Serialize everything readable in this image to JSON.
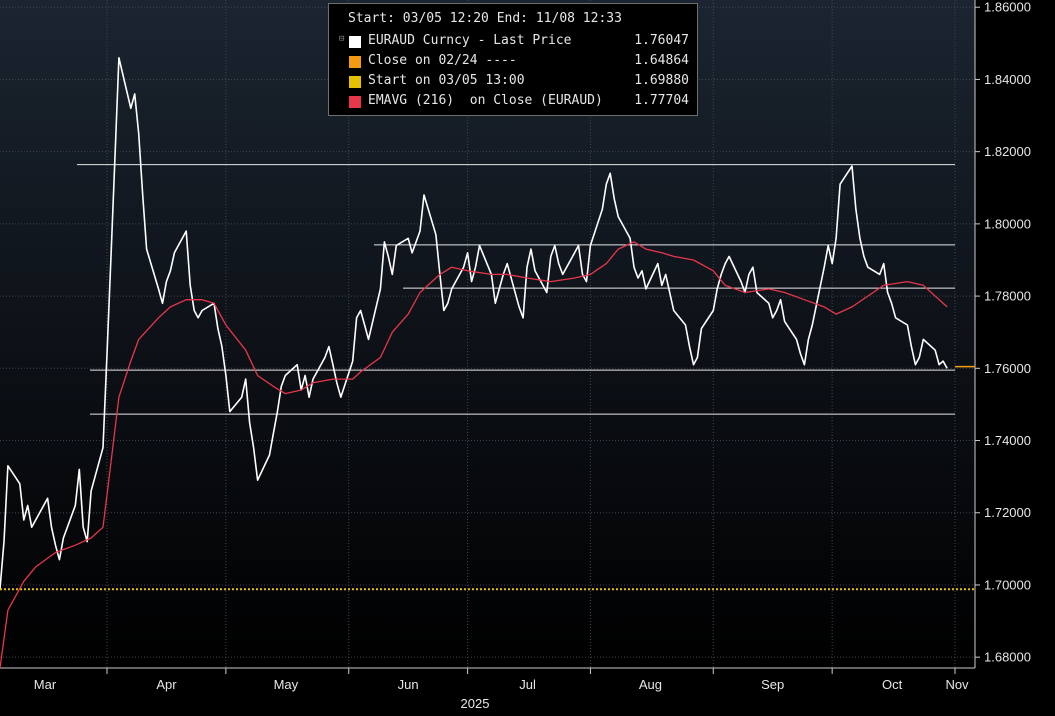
{
  "legend": {
    "header": "Start: 03/05 12:20 End: 11/08 12:33",
    "entries": [
      {
        "label": "EURAUD Curncy - Last Price",
        "value": "1.76047",
        "color": "#ffffff"
      },
      {
        "label": "Close on 02/24 ----",
        "value": "1.64864",
        "color": "#f39c12"
      },
      {
        "label": "Start on 03/05 13:00",
        "value": "1.69880",
        "color": "#e5c100"
      },
      {
        "label": "EMAVG (216)  on Close (EURAUD)",
        "value": "1.77704",
        "color": "#e8364b"
      }
    ]
  },
  "chart_data": {
    "type": "line",
    "x_ticks": [
      "Mar",
      "Apr",
      "May",
      "Jun",
      "Jul",
      "Aug",
      "Sep",
      "Oct",
      "Nov"
    ],
    "year_label": "2025",
    "y_ticks": [
      "1.68000",
      "1.70000",
      "1.72000",
      "1.74000",
      "1.76000",
      "1.78000",
      "1.80000",
      "1.82000",
      "1.84000",
      "1.86000"
    ],
    "ylim": [
      1.677,
      1.862
    ],
    "grid": true,
    "legend_position": "top-center",
    "series": [
      {
        "name": "EURAUD Curncy - Last Price",
        "color": "#ffffff",
        "points": [
          [
            "03/05",
            1.699
          ],
          [
            "03/06",
            1.712
          ],
          [
            "03/07",
            1.733
          ],
          [
            "03/10",
            1.728
          ],
          [
            "03/11",
            1.718
          ],
          [
            "03/12",
            1.722
          ],
          [
            "03/13",
            1.716
          ],
          [
            "03/14",
            1.718
          ],
          [
            "03/17",
            1.724
          ],
          [
            "03/18",
            1.716
          ],
          [
            "03/19",
            1.711
          ],
          [
            "03/20",
            1.707
          ],
          [
            "03/21",
            1.713
          ],
          [
            "03/24",
            1.722
          ],
          [
            "03/25",
            1.732
          ],
          [
            "03/26",
            1.716
          ],
          [
            "03/27",
            1.712
          ],
          [
            "03/28",
            1.726
          ],
          [
            "03/31",
            1.738
          ],
          [
            "04/01",
            1.764
          ],
          [
            "04/02",
            1.791
          ],
          [
            "04/03",
            1.818
          ],
          [
            "04/04",
            1.846
          ],
          [
            "04/07",
            1.832
          ],
          [
            "04/08",
            1.836
          ],
          [
            "04/09",
            1.825
          ],
          [
            "04/10",
            1.808
          ],
          [
            "04/11",
            1.793
          ],
          [
            "04/14",
            1.782
          ],
          [
            "04/15",
            1.778
          ],
          [
            "04/16",
            1.784
          ],
          [
            "04/17",
            1.787
          ],
          [
            "04/18",
            1.792
          ],
          [
            "04/21",
            1.798
          ],
          [
            "04/22",
            1.783
          ],
          [
            "04/23",
            1.776
          ],
          [
            "04/24",
            1.774
          ],
          [
            "04/25",
            1.776
          ],
          [
            "04/28",
            1.778
          ],
          [
            "04/29",
            1.771
          ],
          [
            "04/30",
            1.766
          ],
          [
            "05/01",
            1.758
          ],
          [
            "05/02",
            1.748
          ],
          [
            "05/05",
            1.752
          ],
          [
            "05/06",
            1.757
          ],
          [
            "05/07",
            1.745
          ],
          [
            "05/08",
            1.738
          ],
          [
            "05/09",
            1.729
          ],
          [
            "05/12",
            1.736
          ],
          [
            "05/13",
            1.742
          ],
          [
            "05/14",
            1.748
          ],
          [
            "05/15",
            1.755
          ],
          [
            "05/16",
            1.758
          ],
          [
            "05/19",
            1.761
          ],
          [
            "05/20",
            1.754
          ],
          [
            "05/21",
            1.758
          ],
          [
            "05/22",
            1.752
          ],
          [
            "05/23",
            1.757
          ],
          [
            "05/26",
            1.763
          ],
          [
            "05/27",
            1.766
          ],
          [
            "05/28",
            1.761
          ],
          [
            "05/29",
            1.756
          ],
          [
            "05/30",
            1.752
          ],
          [
            "06/02",
            1.762
          ],
          [
            "06/03",
            1.774
          ],
          [
            "06/04",
            1.776
          ],
          [
            "06/05",
            1.772
          ],
          [
            "06/06",
            1.768
          ],
          [
            "06/09",
            1.782
          ],
          [
            "06/10",
            1.795
          ],
          [
            "06/11",
            1.791
          ],
          [
            "06/12",
            1.786
          ],
          [
            "06/13",
            1.794
          ],
          [
            "06/16",
            1.796
          ],
          [
            "06/17",
            1.792
          ],
          [
            "06/18",
            1.795
          ],
          [
            "06/19",
            1.798
          ],
          [
            "06/20",
            1.808
          ],
          [
            "06/23",
            1.797
          ],
          [
            "06/24",
            1.786
          ],
          [
            "06/25",
            1.776
          ],
          [
            "06/26",
            1.778
          ],
          [
            "06/27",
            1.782
          ],
          [
            "06/30",
            1.788
          ],
          [
            "07/01",
            1.792
          ],
          [
            "07/02",
            1.784
          ],
          [
            "07/03",
            1.788
          ],
          [
            "07/04",
            1.794
          ],
          [
            "07/07",
            1.786
          ],
          [
            "07/08",
            1.778
          ],
          [
            "07/09",
            1.782
          ],
          [
            "07/10",
            1.786
          ],
          [
            "07/11",
            1.789
          ],
          [
            "07/14",
            1.777
          ],
          [
            "07/15",
            1.774
          ],
          [
            "07/16",
            1.788
          ],
          [
            "07/17",
            1.793
          ],
          [
            "07/18",
            1.787
          ],
          [
            "07/21",
            1.781
          ],
          [
            "07/22",
            1.791
          ],
          [
            "07/23",
            1.794
          ],
          [
            "07/24",
            1.789
          ],
          [
            "07/25",
            1.786
          ],
          [
            "07/28",
            1.792
          ],
          [
            "07/29",
            1.794
          ],
          [
            "07/30",
            1.786
          ],
          [
            "07/31",
            1.784
          ],
          [
            "08/01",
            1.794
          ],
          [
            "08/04",
            1.804
          ],
          [
            "08/05",
            1.811
          ],
          [
            "08/06",
            1.814
          ],
          [
            "08/07",
            1.807
          ],
          [
            "08/08",
            1.802
          ],
          [
            "08/11",
            1.796
          ],
          [
            "08/12",
            1.788
          ],
          [
            "08/13",
            1.785
          ],
          [
            "08/14",
            1.787
          ],
          [
            "08/15",
            1.782
          ],
          [
            "08/18",
            1.789
          ],
          [
            "08/19",
            1.783
          ],
          [
            "08/20",
            1.786
          ],
          [
            "08/21",
            1.781
          ],
          [
            "08/22",
            1.776
          ],
          [
            "08/25",
            1.772
          ],
          [
            "08/26",
            1.766
          ],
          [
            "08/27",
            1.761
          ],
          [
            "08/28",
            1.763
          ],
          [
            "08/29",
            1.771
          ],
          [
            "09/01",
            1.776
          ],
          [
            "09/02",
            1.782
          ],
          [
            "09/03",
            1.786
          ],
          [
            "09/04",
            1.789
          ],
          [
            "09/05",
            1.791
          ],
          [
            "09/08",
            1.784
          ],
          [
            "09/09",
            1.781
          ],
          [
            "09/10",
            1.786
          ],
          [
            "09/11",
            1.788
          ],
          [
            "09/12",
            1.781
          ],
          [
            "09/15",
            1.778
          ],
          [
            "09/16",
            1.774
          ],
          [
            "09/17",
            1.776
          ],
          [
            "09/18",
            1.779
          ],
          [
            "09/19",
            1.773
          ],
          [
            "09/22",
            1.768
          ],
          [
            "09/23",
            1.764
          ],
          [
            "09/24",
            1.761
          ],
          [
            "09/25",
            1.768
          ],
          [
            "09/26",
            1.772
          ],
          [
            "09/29",
            1.788
          ],
          [
            "09/30",
            1.794
          ],
          [
            "10/01",
            1.789
          ],
          [
            "10/02",
            1.796
          ],
          [
            "10/03",
            1.811
          ],
          [
            "10/06",
            1.816
          ],
          [
            "10/07",
            1.804
          ],
          [
            "10/08",
            1.796
          ],
          [
            "10/09",
            1.791
          ],
          [
            "10/10",
            1.788
          ],
          [
            "10/13",
            1.786
          ],
          [
            "10/14",
            1.789
          ],
          [
            "10/15",
            1.781
          ],
          [
            "10/16",
            1.778
          ],
          [
            "10/17",
            1.774
          ],
          [
            "10/20",
            1.772
          ],
          [
            "10/21",
            1.766
          ],
          [
            "10/22",
            1.761
          ],
          [
            "10/23",
            1.763
          ],
          [
            "10/24",
            1.768
          ],
          [
            "10/27",
            1.765
          ],
          [
            "10/28",
            1.761
          ],
          [
            "10/29",
            1.762
          ],
          [
            "10/30",
            1.76
          ]
        ]
      },
      {
        "name": "EMAVG (216)  on Close (EURAUD)",
        "color": "#e8364b",
        "points": [
          [
            "03/05",
            1.677
          ],
          [
            "03/07",
            1.693
          ],
          [
            "03/11",
            1.701
          ],
          [
            "03/14",
            1.705
          ],
          [
            "03/19",
            1.709
          ],
          [
            "03/24",
            1.711
          ],
          [
            "03/28",
            1.713
          ],
          [
            "03/31",
            1.716
          ],
          [
            "04/02",
            1.734
          ],
          [
            "04/04",
            1.752
          ],
          [
            "04/07",
            1.762
          ],
          [
            "04/09",
            1.768
          ],
          [
            "04/14",
            1.774
          ],
          [
            "04/17",
            1.777
          ],
          [
            "04/21",
            1.779
          ],
          [
            "04/25",
            1.779
          ],
          [
            "04/28",
            1.778
          ],
          [
            "05/01",
            1.772
          ],
          [
            "05/06",
            1.765
          ],
          [
            "05/09",
            1.758
          ],
          [
            "05/13",
            1.755
          ],
          [
            "05/16",
            1.753
          ],
          [
            "05/20",
            1.754
          ],
          [
            "05/23",
            1.756
          ],
          [
            "05/28",
            1.757
          ],
          [
            "06/02",
            1.757
          ],
          [
            "06/04",
            1.759
          ],
          [
            "06/09",
            1.763
          ],
          [
            "06/12",
            1.77
          ],
          [
            "06/16",
            1.775
          ],
          [
            "06/19",
            1.781
          ],
          [
            "06/24",
            1.786
          ],
          [
            "06/27",
            1.788
          ],
          [
            "07/01",
            1.787
          ],
          [
            "07/07",
            1.786
          ],
          [
            "07/11",
            1.786
          ],
          [
            "07/16",
            1.785
          ],
          [
            "07/22",
            1.784
          ],
          [
            "07/28",
            1.785
          ],
          [
            "08/01",
            1.786
          ],
          [
            "08/05",
            1.789
          ],
          [
            "08/08",
            1.793
          ],
          [
            "08/12",
            1.795
          ],
          [
            "08/15",
            1.793
          ],
          [
            "08/19",
            1.792
          ],
          [
            "08/22",
            1.791
          ],
          [
            "08/27",
            1.79
          ],
          [
            "09/01",
            1.787
          ],
          [
            "09/04",
            1.783
          ],
          [
            "09/09",
            1.781
          ],
          [
            "09/15",
            1.782
          ],
          [
            "09/19",
            1.781
          ],
          [
            "09/24",
            1.779
          ],
          [
            "09/29",
            1.777
          ],
          [
            "10/02",
            1.775
          ],
          [
            "10/06",
            1.777
          ],
          [
            "10/10",
            1.78
          ],
          [
            "10/14",
            1.783
          ],
          [
            "10/20",
            1.784
          ],
          [
            "10/24",
            1.783
          ],
          [
            "10/30",
            1.777
          ]
        ]
      }
    ],
    "reference_lines": [
      {
        "label": "Start on 03/05 13:00",
        "value": 1.6988,
        "color": "#e5c100",
        "style": "dotted"
      },
      {
        "label": "Last Price",
        "value": 1.76047,
        "color": "#f39c12",
        "style": "solid"
      }
    ],
    "support_resistance_levels": [
      1.8164,
      1.7942,
      1.7822,
      1.7595,
      1.7473
    ]
  }
}
